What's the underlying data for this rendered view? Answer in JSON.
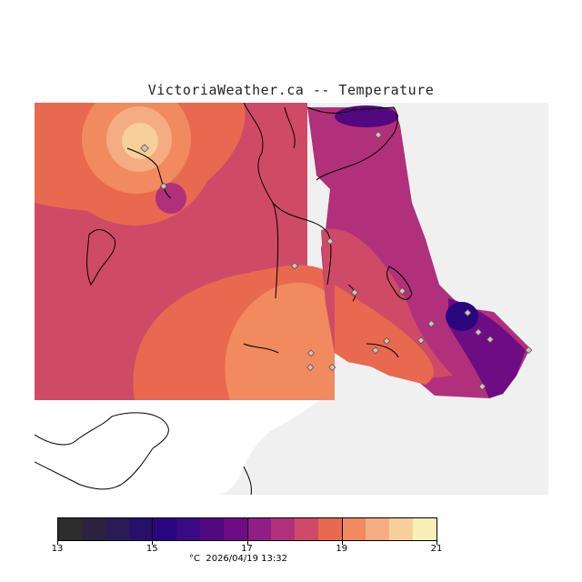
{
  "title": "VictoriaWeather.ca -- Temperature",
  "legend": {
    "tick_labels": [
      "13",
      "15",
      "17",
      "19",
      "21"
    ],
    "min": 13,
    "max": 21,
    "colors": [
      "#2d2d2d",
      "#2d2240",
      "#2b1b54",
      "#27106a",
      "#2a0580",
      "#380a83",
      "#52087f",
      "#6e0d83",
      "#8f1e85",
      "#b0307b",
      "#cf4a67",
      "#e8694f",
      "#f18a5e",
      "#f5ac83",
      "#f7cf9b",
      "#f8f0b6"
    ],
    "unit": "°C",
    "timestamp": "2026/04/19 13:32"
  },
  "colors": {
    "land_masked": "#f0f0f0",
    "coastline": "#000000",
    "station_marker": "#d8c0b8"
  }
}
